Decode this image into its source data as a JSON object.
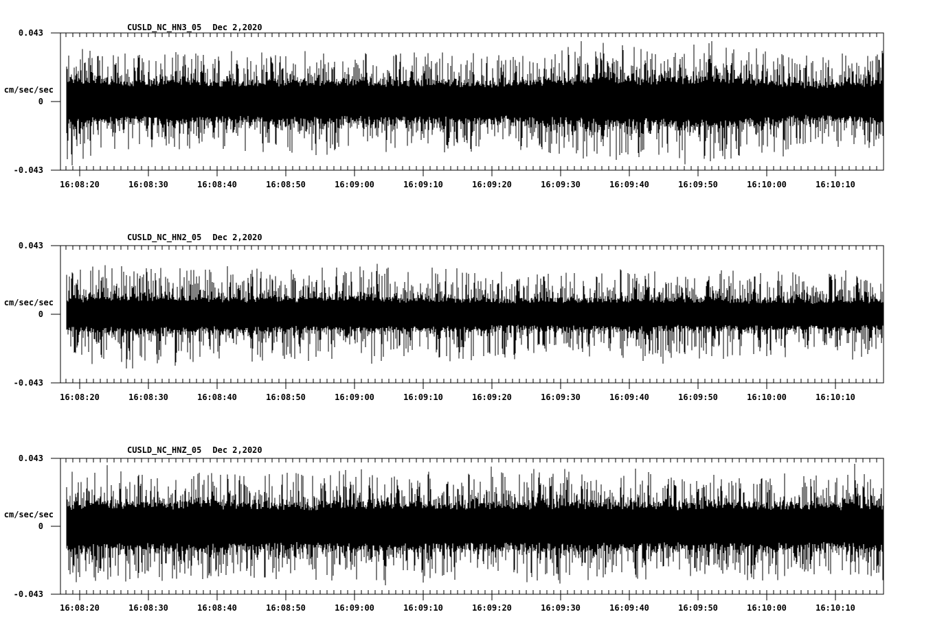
{
  "page": {
    "background": "#ffffff",
    "ink": "#000000"
  },
  "chart_data": [
    {
      "type": "line",
      "subtype": "seismic-waveform",
      "title": "CUSLD_NC_HN3_05  Dec 2,2020",
      "station": "CUSLD_NC_HN3_05",
      "date": "Dec 2,2020",
      "ylabel": "cm/sec/sec",
      "ylim": [
        -0.043,
        0.043
      ],
      "yticks": [
        "0.043",
        "0",
        "-0.043"
      ],
      "xticks": [
        "16:08:20",
        "16:08:30",
        "16:08:40",
        "16:08:50",
        "16:09:00",
        "16:09:10",
        "16:09:20",
        "16:09:30",
        "16:09:40",
        "16:09:50",
        "16:10:00",
        "16:10:10"
      ],
      "x_start": "16:08:17",
      "x_end": "16:10:17",
      "x_major_tick_seconds": 10,
      "x_minor_tick_seconds": 1,
      "grid": false,
      "legend": false,
      "waveform": {
        "seed": 101,
        "band_fraction": 0.36,
        "noise_envelope": [
          0.9,
          0.75,
          0.72,
          0.78,
          0.72,
          0.7,
          0.74,
          0.78,
          0.72,
          0.7,
          0.74,
          0.72,
          0.7,
          0.72,
          0.76,
          0.8,
          0.88,
          0.82,
          0.86,
          0.9,
          0.82,
          0.72,
          0.64,
          0.7,
          0.78
        ],
        "spikes": [
          {
            "f": 0.007,
            "amp": 0.93,
            "dir": -1
          },
          {
            "f": 0.63,
            "amp": 0.88,
            "dir": 1
          },
          {
            "f": 0.877,
            "amp": 0.8,
            "dir": -1
          }
        ]
      }
    },
    {
      "type": "line",
      "subtype": "seismic-waveform",
      "title": "CUSLD_NC_HN2_05  Dec 2,2020",
      "station": "CUSLD_NC_HN2_05",
      "date": "Dec 2,2020",
      "ylabel": "cm/sec/sec",
      "ylim": [
        -0.043,
        0.043
      ],
      "yticks": [
        "0.043",
        "0",
        "-0.043"
      ],
      "xticks": [
        "16:08:20",
        "16:08:30",
        "16:08:40",
        "16:08:50",
        "16:09:00",
        "16:09:10",
        "16:09:20",
        "16:09:30",
        "16:09:40",
        "16:09:50",
        "16:10:00",
        "16:10:10"
      ],
      "x_start": "16:08:17",
      "x_end": "16:10:17",
      "x_major_tick_seconds": 10,
      "x_minor_tick_seconds": 1,
      "grid": false,
      "legend": false,
      "waveform": {
        "seed": 202,
        "band_fraction": 0.31,
        "noise_envelope": [
          0.66,
          0.72,
          0.78,
          0.74,
          0.7,
          0.68,
          0.72,
          0.66,
          0.7,
          0.74,
          0.66,
          0.7,
          0.64,
          0.62,
          0.66,
          0.62,
          0.64,
          0.7,
          0.62,
          0.66,
          0.6,
          0.64,
          0.6,
          0.64,
          0.6
        ],
        "spikes": [
          {
            "f": 0.394,
            "amp": 0.68,
            "dir": 1
          },
          {
            "f": 0.73,
            "amp": 0.72,
            "dir": -1
          }
        ]
      }
    },
    {
      "type": "line",
      "subtype": "seismic-waveform",
      "title": "CUSLD_NC_HNZ_05  Dec 2,2020",
      "station": "CUSLD_NC_HNZ_05",
      "date": "Dec 2,2020",
      "ylabel": "cm/sec/sec",
      "ylim": [
        -0.043,
        0.043
      ],
      "yticks": [
        "0.043",
        "0",
        "-0.043"
      ],
      "xticks": [
        "16:08:20",
        "16:08:30",
        "16:08:40",
        "16:08:50",
        "16:09:00",
        "16:09:10",
        "16:09:20",
        "16:09:30",
        "16:09:40",
        "16:09:50",
        "16:10:00",
        "16:10:10"
      ],
      "x_start": "16:08:17",
      "x_end": "16:10:17",
      "x_major_tick_seconds": 10,
      "x_minor_tick_seconds": 1,
      "grid": false,
      "legend": false,
      "waveform": {
        "seed": 303,
        "band_fraction": 0.38,
        "noise_envelope": [
          0.78,
          0.82,
          0.78,
          0.8,
          0.84,
          0.78,
          0.8,
          0.76,
          0.8,
          0.84,
          0.8,
          0.76,
          0.8,
          0.78,
          0.8,
          0.82,
          0.78,
          0.8,
          0.76,
          0.8,
          0.78,
          0.8,
          0.74,
          0.76,
          0.8
        ],
        "spikes": [
          {
            "f": 0.05,
            "amp": 0.9,
            "dir": 1
          },
          {
            "f": 0.52,
            "amp": 0.88,
            "dir": 1
          },
          {
            "f": 0.965,
            "amp": 0.92,
            "dir": 1
          }
        ]
      }
    }
  ]
}
